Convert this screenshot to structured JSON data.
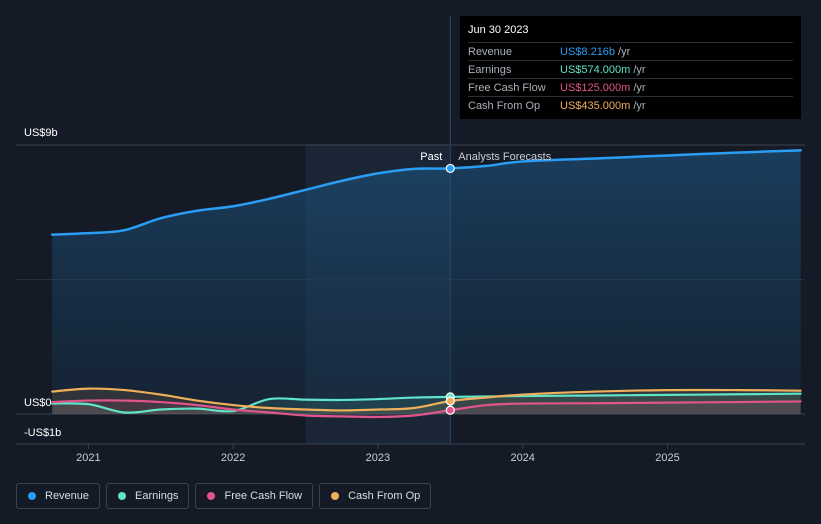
{
  "tooltip": {
    "date": "Jun 30 2023",
    "rows": [
      {
        "label": "Revenue",
        "value": "US$8.216b",
        "unit": "/yr",
        "color": "#2a9df4"
      },
      {
        "label": "Earnings",
        "value": "US$574.000m",
        "unit": "/yr",
        "color": "#5fe3c9"
      },
      {
        "label": "Free Cash Flow",
        "value": "US$125.000m",
        "unit": "/yr",
        "color": "#e0558c"
      },
      {
        "label": "Cash From Op",
        "value": "US$435.000m",
        "unit": "/yr",
        "color": "#f0b05a"
      }
    ]
  },
  "chart_data": {
    "type": "line",
    "y_ticks": [
      "US$9b",
      "US$0",
      "-US$1b"
    ],
    "ylim": [
      -1,
      9
    ],
    "x_ticks": [
      "2021",
      "2022",
      "2023",
      "2024",
      "2025"
    ],
    "xlim": [
      2020.5,
      2025.95
    ],
    "past_label": "Past",
    "forecast_label": "Analysts Forecasts",
    "divider_x": 2023.5,
    "highlight_start_x": 2022.5,
    "colors": {
      "Revenue": "#2a9df4",
      "Earnings": "#5fe3c9",
      "Free Cash Flow": "#e0558c",
      "Cash From Op": "#f0b05a"
    },
    "series": [
      {
        "name": "Revenue",
        "color": "#2a9df4",
        "x": [
          2020.75,
          2021.0,
          2021.25,
          2021.5,
          2021.75,
          2022.0,
          2022.25,
          2022.5,
          2022.75,
          2023.0,
          2023.25,
          2023.5,
          2023.75,
          2024.0,
          2024.5,
          2025.0,
          2025.5,
          2025.92
        ],
        "y": [
          6.0,
          6.05,
          6.15,
          6.55,
          6.8,
          6.95,
          7.2,
          7.5,
          7.8,
          8.05,
          8.2,
          8.216,
          8.3,
          8.45,
          8.55,
          8.65,
          8.75,
          8.82
        ]
      },
      {
        "name": "Earnings",
        "color": "#5fe3c9",
        "x": [
          2020.75,
          2021.0,
          2021.25,
          2021.5,
          2021.75,
          2022.0,
          2022.25,
          2022.5,
          2022.75,
          2023.0,
          2023.25,
          2023.5,
          2024.0,
          2024.5,
          2025.0,
          2025.5,
          2025.92
        ],
        "y": [
          0.35,
          0.33,
          0.05,
          0.15,
          0.18,
          0.1,
          0.5,
          0.48,
          0.47,
          0.5,
          0.55,
          0.574,
          0.6,
          0.62,
          0.64,
          0.66,
          0.68
        ]
      },
      {
        "name": "Free Cash Flow",
        "color": "#e0558c",
        "x": [
          2020.75,
          2021.0,
          2021.25,
          2021.5,
          2021.75,
          2022.0,
          2022.25,
          2022.5,
          2022.75,
          2023.0,
          2023.25,
          2023.5,
          2023.75,
          2024.0,
          2024.5,
          2025.0,
          2025.5,
          2025.92
        ],
        "y": [
          0.4,
          0.45,
          0.45,
          0.4,
          0.3,
          0.15,
          0.05,
          -0.05,
          -0.08,
          -0.1,
          -0.05,
          0.125,
          0.3,
          0.35,
          0.36,
          0.38,
          0.4,
          0.42
        ]
      },
      {
        "name": "Cash From Op",
        "color": "#f0b05a",
        "x": [
          2020.75,
          2021.0,
          2021.25,
          2021.5,
          2021.75,
          2022.0,
          2022.25,
          2022.5,
          2022.75,
          2023.0,
          2023.25,
          2023.5,
          2023.75,
          2024.0,
          2024.5,
          2025.0,
          2025.5,
          2025.92
        ],
        "y": [
          0.75,
          0.85,
          0.8,
          0.65,
          0.45,
          0.3,
          0.2,
          0.15,
          0.12,
          0.15,
          0.2,
          0.435,
          0.55,
          0.65,
          0.75,
          0.8,
          0.8,
          0.78
        ]
      }
    ]
  },
  "legend": [
    {
      "label": "Revenue",
      "color": "#2a9df4"
    },
    {
      "label": "Earnings",
      "color": "#5fe3c9"
    },
    {
      "label": "Free Cash Flow",
      "color": "#e0558c"
    },
    {
      "label": "Cash From Op",
      "color": "#f0b05a"
    }
  ]
}
